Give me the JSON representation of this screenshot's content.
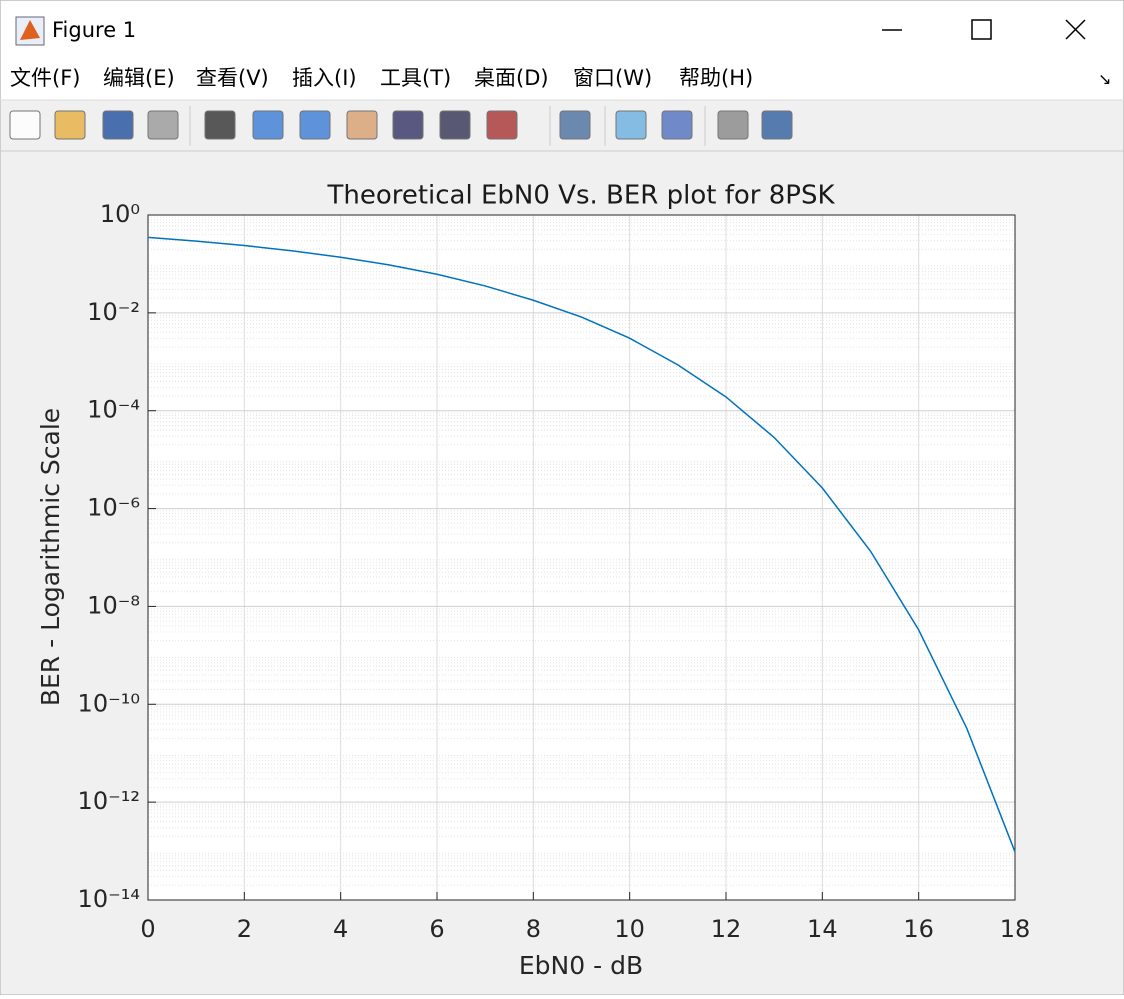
{
  "window": {
    "title": "Figure 1",
    "menu": [
      "文件(F)",
      "编辑(E)",
      "查看(V)",
      "插入(I)",
      "工具(T)",
      "桌面(D)",
      "窗口(W)",
      "帮助(H)"
    ]
  },
  "chart_data": {
    "type": "line",
    "title": "Theoretical EbN0 Vs. BER plot for 8PSK",
    "x_label": "EbN0 - dB",
    "y_label": "BER - Logarithmic Scale",
    "x": [
      0,
      1,
      2,
      3,
      4,
      5,
      6,
      7,
      8,
      9,
      10,
      11,
      12,
      13,
      14,
      15,
      16,
      17,
      18
    ],
    "series": [
      {
        "color": "#0072bd",
        "values": [
          0.348,
          0.2925,
          0.238,
          0.185,
          0.137,
          0.0956,
          0.0614,
          0.0355,
          0.0181,
          0.0082,
          0.00303,
          0.000865,
          0.000191,
          2.83e-05,
          2.63e-06,
          1.35e-07,
          3.32e-09,
          3.21e-11,
          9.6e-14
        ]
      }
    ],
    "xlim": [
      0,
      18
    ],
    "xticks": [
      0,
      2,
      4,
      6,
      8,
      10,
      12,
      14,
      16,
      18
    ],
    "ylim": [
      1e-14,
      1
    ],
    "y_scale": "log",
    "yticks": [
      {
        "value": 1,
        "label": "10⁰"
      },
      {
        "value": 0.01,
        "label": "10⁻²"
      },
      {
        "value": 0.0001,
        "label": "10⁻⁴"
      },
      {
        "value": 1e-06,
        "label": "10⁻⁶"
      },
      {
        "value": 1e-08,
        "label": "10⁻⁸"
      },
      {
        "value": 1e-10,
        "label": "10⁻¹⁰"
      },
      {
        "value": 1e-12,
        "label": "10⁻¹²"
      },
      {
        "value": 1e-14,
        "label": "10⁻¹⁴"
      }
    ],
    "grid": true,
    "minor_grid": true
  }
}
